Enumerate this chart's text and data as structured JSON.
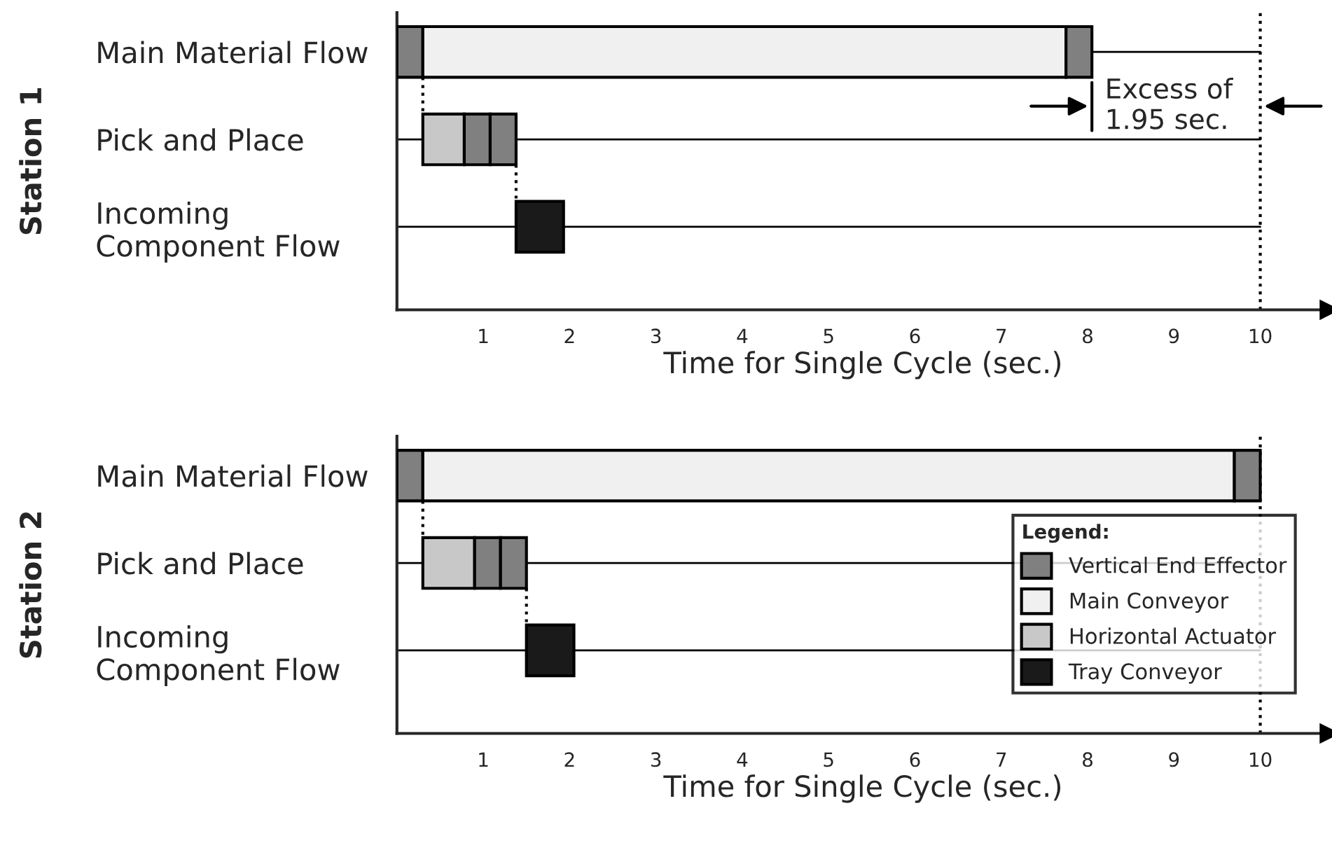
{
  "chart_data": [
    {
      "type": "bar",
      "orientation": "horizontal",
      "ylabel": "Station 1",
      "xlabel": "Time for Single Cycle (sec.)",
      "categories": [
        "Main Material Flow",
        "Pick and Place",
        "Incoming\nComponent Flow"
      ],
      "series": [
        {
          "color": "#808080",
          "base": [
            0,
            null,
            null
          ],
          "values": [
            0.3,
            null,
            null
          ]
        },
        {
          "color": "#f0f0f0",
          "base": [
            0.3,
            null,
            null
          ],
          "values": [
            7.45,
            null,
            null
          ]
        },
        {
          "color": "#c8c8c8",
          "base": [
            null,
            0.3,
            null
          ],
          "values": [
            null,
            0.48,
            null
          ]
        },
        {
          "color": "#808080",
          "base": [
            7.75,
            0.78,
            null
          ],
          "values": [
            0.3,
            0.3,
            null
          ]
        },
        {
          "color": "#808080",
          "base": [
            null,
            1.08,
            null
          ],
          "values": [
            null,
            0.3,
            null
          ]
        },
        {
          "color": "#1a1a1a",
          "base": [
            null,
            null,
            1.38
          ],
          "values": [
            null,
            null,
            0.55
          ]
        }
      ],
      "xlim": [
        0,
        10.8
      ],
      "xticks": [
        1,
        2,
        3,
        4,
        5,
        6,
        7,
        8,
        9,
        10
      ],
      "ref_lines": [
        {
          "axis": "x",
          "value": 10,
          "line_style": "dotted",
          "color": "#000000"
        }
      ],
      "annotations": [
        "Excess of\n1.95 sec."
      ],
      "grid": "y",
      "legend": false
    },
    {
      "type": "bar",
      "orientation": "horizontal",
      "ylabel": "Station 2",
      "xlabel": "Time for Single Cycle (sec.)",
      "categories": [
        "Main Material Flow",
        "Pick and Place",
        "Incoming\nComponent Flow"
      ],
      "series": [
        {
          "name": "Vertical End Effector",
          "color": "#808080",
          "base": [
            0,
            null,
            null
          ],
          "values": [
            0.3,
            null,
            null
          ]
        },
        {
          "name": "Main Conveyor",
          "color": "#f0f0f0",
          "base": [
            0.3,
            null,
            null
          ],
          "values": [
            9.4,
            null,
            null
          ]
        },
        {
          "name": "Horizontal Actuator",
          "color": "#c8c8c8",
          "base": [
            null,
            0.3,
            null
          ],
          "values": [
            null,
            0.6,
            null
          ]
        },
        {
          "color": "#808080",
          "base": [
            9.7,
            0.9,
            null
          ],
          "values": [
            0.3,
            0.3,
            null
          ]
        },
        {
          "color": "#808080",
          "base": [
            null,
            1.2,
            null
          ],
          "values": [
            null,
            0.3,
            null
          ]
        },
        {
          "name": "Tray Conveyor",
          "color": "#1a1a1a",
          "base": [
            null,
            null,
            1.5
          ],
          "values": [
            null,
            null,
            0.55
          ]
        }
      ],
      "xlim": [
        0,
        10.8
      ],
      "xticks": [
        1,
        2,
        3,
        4,
        5,
        6,
        7,
        8,
        9,
        10
      ],
      "ref_lines": [
        {
          "axis": "x",
          "value": 10,
          "line_style": "dotted",
          "color": "#000000"
        }
      ],
      "legend_title": "Legend:",
      "grid": "y",
      "legend": "lower right"
    }
  ]
}
